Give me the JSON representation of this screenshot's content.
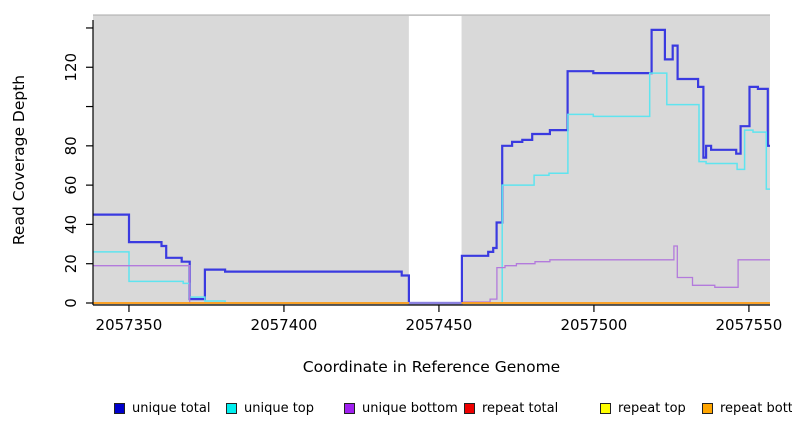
{
  "chart_data": {
    "type": "line",
    "interpolation": "step-after",
    "title": "",
    "xlabel": "Coordinate in Reference Genome",
    "ylabel": "Read Coverage Depth",
    "xlim": [
      2057338.4,
      2057556.8
    ],
    "ylim": [
      -1.02,
      146.6
    ],
    "grid": false,
    "panel_bg": "#d9d9d9",
    "panel_top_border": "#aaaaaa",
    "axis_color": "#000000",
    "masked_region": {
      "x_start": 2057440.3,
      "x_end": 2057457.3,
      "color": "#ffffff"
    },
    "x_ticks": [
      {
        "v": 2057350,
        "label": "2057350"
      },
      {
        "v": 2057400,
        "label": "2057400"
      },
      {
        "v": 2057450,
        "label": "2057450"
      },
      {
        "v": 2057500,
        "label": "2057500"
      },
      {
        "v": 2057550,
        "label": "2057550"
      }
    ],
    "y_ticks": [
      {
        "v": 0,
        "label": "0"
      },
      {
        "v": 20,
        "label": "20"
      },
      {
        "v": 40,
        "label": "40"
      },
      {
        "v": 60,
        "label": "60"
      },
      {
        "v": 80,
        "label": "80"
      },
      {
        "v": 100,
        "label": ""
      },
      {
        "v": 120,
        "label": "120"
      },
      {
        "v": 140,
        "label": ""
      }
    ],
    "legend_position": "bottom",
    "series": [
      {
        "name": "unique total",
        "legend_color": "#0000cc",
        "line_color": "#3a3ae0",
        "line_width": 2.2,
        "breaks_in_masked_region": false,
        "points": [
          [
            2057338.4,
            45
          ],
          [
            2057350,
            31
          ],
          [
            2057360.5,
            29
          ],
          [
            2057362,
            23
          ],
          [
            2057367,
            21
          ],
          [
            2057369.6,
            2
          ],
          [
            2057374.5,
            17
          ],
          [
            2057381,
            16
          ],
          [
            2057438,
            14
          ],
          [
            2057440.3,
            0
          ],
          [
            2057457.4,
            24
          ],
          [
            2057465.9,
            26
          ],
          [
            2057467.5,
            28
          ],
          [
            2057468.6,
            41
          ],
          [
            2057470.4,
            80
          ],
          [
            2057473.6,
            82
          ],
          [
            2057476.9,
            83
          ],
          [
            2057480.1,
            86
          ],
          [
            2057485.8,
            88
          ],
          [
            2057491.5,
            118
          ],
          [
            2057499.8,
            117
          ],
          [
            2057518.6,
            139
          ],
          [
            2057522.9,
            124
          ],
          [
            2057525.4,
            131
          ],
          [
            2057527,
            114
          ],
          [
            2057533.6,
            110
          ],
          [
            2057535.3,
            74
          ],
          [
            2057536.2,
            80
          ],
          [
            2057537.8,
            78
          ],
          [
            2057545.9,
            76
          ],
          [
            2057547.3,
            90
          ],
          [
            2057550.2,
            110
          ],
          [
            2057552.9,
            109
          ],
          [
            2057556.1,
            80
          ]
        ]
      },
      {
        "name": "unique top",
        "legend_color": "#00eeee",
        "line_color": "#5fe4ef",
        "line_width": 1.5,
        "breaks_in_masked_region": false,
        "points": [
          [
            2057338.4,
            26
          ],
          [
            2057350,
            11
          ],
          [
            2057367.5,
            10
          ],
          [
            2057369.6,
            3
          ],
          [
            2057374.5,
            1
          ],
          [
            2057381,
            0
          ],
          [
            2057470.4,
            60
          ],
          [
            2057480.7,
            65
          ],
          [
            2057485.5,
            66
          ],
          [
            2057491.6,
            96
          ],
          [
            2057499.8,
            95
          ],
          [
            2057518,
            117
          ],
          [
            2057523.5,
            101
          ],
          [
            2057533.9,
            72
          ],
          [
            2057536.2,
            71
          ],
          [
            2057546.2,
            68
          ],
          [
            2057548.6,
            88
          ],
          [
            2057551.3,
            87
          ],
          [
            2057555.6,
            58
          ]
        ]
      },
      {
        "name": "unique bottom",
        "legend_color": "#a020f0",
        "line_color": "#b37adc",
        "line_width": 1.3,
        "breaks_in_masked_region": false,
        "points": [
          [
            2057338.4,
            19
          ],
          [
            2057369.6,
            0
          ],
          [
            2057458,
            0.5
          ],
          [
            2057466.5,
            2
          ],
          [
            2057468.7,
            18
          ],
          [
            2057471.3,
            19
          ],
          [
            2057475,
            20
          ],
          [
            2057481,
            21
          ],
          [
            2057485.8,
            22
          ],
          [
            2057525.8,
            29
          ],
          [
            2057526.9,
            13
          ],
          [
            2057531.8,
            9
          ],
          [
            2057539,
            8
          ],
          [
            2057546.5,
            22
          ]
        ]
      },
      {
        "name": "repeat total",
        "legend_color": "#ee0000",
        "line_color": "#dd2222",
        "line_width": 1.2,
        "breaks_in_masked_region": true,
        "points": [
          [
            2057338.4,
            0
          ]
        ]
      },
      {
        "name": "repeat top",
        "legend_color": "#ffff00",
        "line_color": "#eeee33",
        "line_width": 1.2,
        "breaks_in_masked_region": true,
        "points": [
          [
            2057338.4,
            0
          ]
        ]
      },
      {
        "name": "repeat bottom",
        "legend_color": "#ffa500",
        "line_color": "#ff9f1a",
        "line_width": 1.8,
        "breaks_in_masked_region": true,
        "points": [
          [
            2057338.4,
            0
          ]
        ]
      }
    ]
  }
}
